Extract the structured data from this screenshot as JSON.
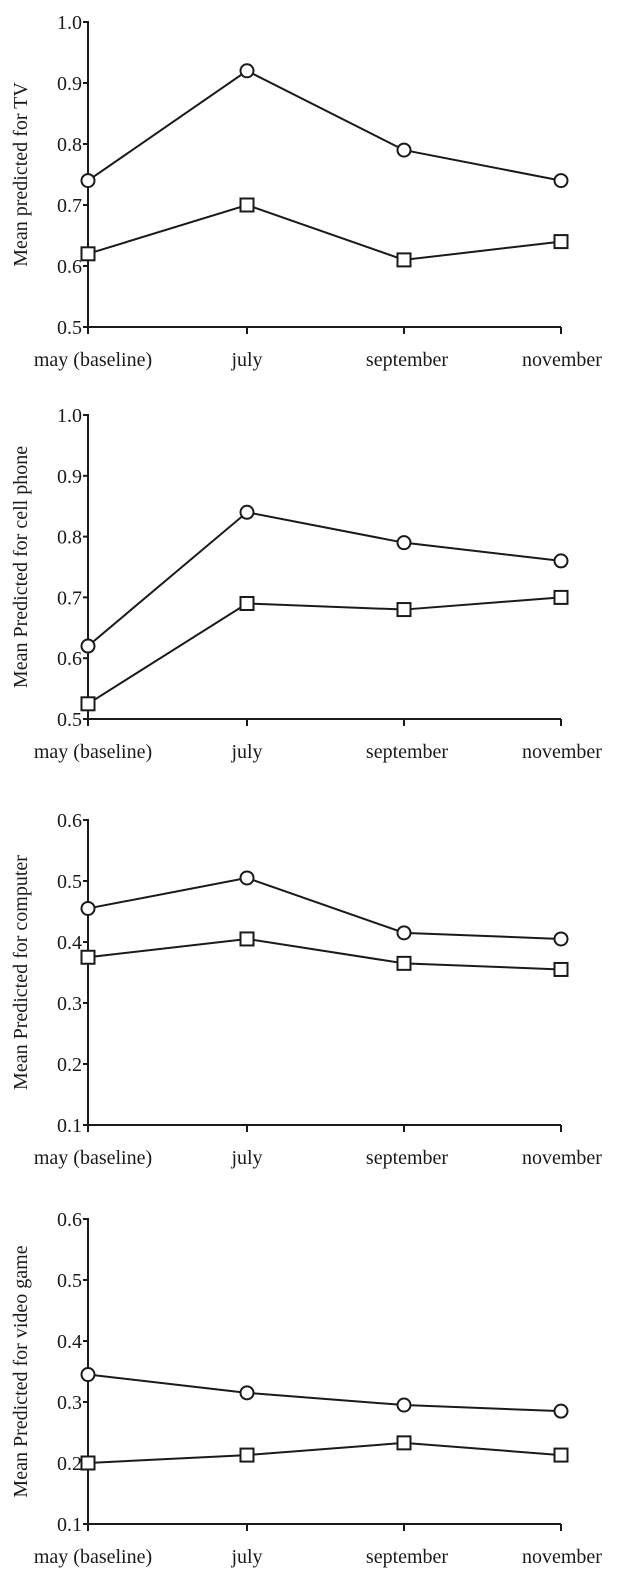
{
  "chart_data": [
    {
      "type": "line",
      "title": "",
      "xlabel": "",
      "ylabel": "Mean predicted for TV",
      "categories": [
        "may (baseline)",
        "july",
        "september",
        "november"
      ],
      "ylim": [
        0.5,
        1.0
      ],
      "yticks": [
        "0.5",
        "0.6",
        "0.7",
        "0.8",
        "0.9",
        "1.0"
      ],
      "series": [
        {
          "marker": "circle",
          "values": [
            0.74,
            0.92,
            0.79,
            0.74
          ]
        },
        {
          "marker": "square",
          "values": [
            0.62,
            0.7,
            0.61,
            0.64
          ]
        }
      ]
    },
    {
      "type": "line",
      "title": "",
      "xlabel": "",
      "ylabel": "Mean Predicted for cell phone",
      "categories": [
        "may (baseline)",
        "july",
        "september",
        "november"
      ],
      "ylim": [
        0.5,
        1.0
      ],
      "yticks": [
        "0.5",
        "0.6",
        "0.7",
        "0.8",
        "0.9",
        "1.0"
      ],
      "series": [
        {
          "marker": "circle",
          "values": [
            0.62,
            0.84,
            0.79,
            0.76
          ]
        },
        {
          "marker": "square",
          "values": [
            0.525,
            0.69,
            0.68,
            0.7
          ]
        }
      ]
    },
    {
      "type": "line",
      "title": "",
      "xlabel": "",
      "ylabel": "Mean Predicted for computer",
      "categories": [
        "may (baseline)",
        "july",
        "september",
        "november"
      ],
      "ylim": [
        0.1,
        0.6
      ],
      "yticks": [
        "0.1",
        "0.2",
        "0.3",
        "0.4",
        "0.5",
        "0.6"
      ],
      "series": [
        {
          "marker": "circle",
          "values": [
            0.455,
            0.505,
            0.415,
            0.405
          ]
        },
        {
          "marker": "square",
          "values": [
            0.375,
            0.405,
            0.365,
            0.355
          ]
        }
      ]
    },
    {
      "type": "line",
      "title": "",
      "xlabel": "",
      "ylabel": "Mean Predicted for video game",
      "categories": [
        "may (baseline)",
        "july",
        "september",
        "november"
      ],
      "ylim": [
        0.1,
        0.6
      ],
      "yticks": [
        "0.1",
        "0.2",
        "0.3",
        "0.4",
        "0.5",
        "0.6"
      ],
      "series": [
        {
          "marker": "circle",
          "values": [
            0.345,
            0.315,
            0.295,
            0.285
          ]
        },
        {
          "marker": "square",
          "values": [
            0.2,
            0.213,
            0.233,
            0.213
          ]
        }
      ]
    }
  ]
}
